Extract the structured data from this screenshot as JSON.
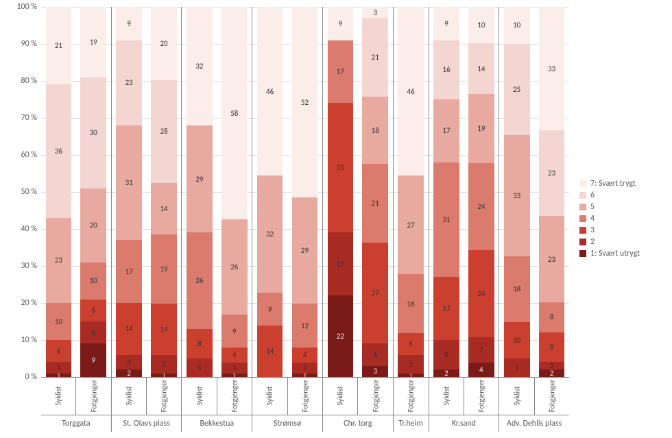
{
  "chart": {
    "type": "stacked-bar-percent",
    "background_color": "#ffffff",
    "grid_color": "#d9d9d9",
    "axis_color": "#888888",
    "text_color": "#595959",
    "label_fontsize": 12,
    "datalabel_fontsize": 11,
    "ylim": [
      0,
      100
    ],
    "ytick_step": 10,
    "yticks": [
      "0 %",
      "10 %",
      "20 %",
      "30 %",
      "40 %",
      "50 %",
      "60 %",
      "70 %",
      "80 %",
      "90 %",
      "100 %"
    ],
    "series": [
      {
        "key": "1",
        "label": "1: Svært utrygt",
        "color": "#7a1b17"
      },
      {
        "key": "2",
        "label": "2",
        "color": "#a82b24"
      },
      {
        "key": "3",
        "label": "3",
        "color": "#cb3f2e"
      },
      {
        "key": "4",
        "label": "4",
        "color": "#da7b6e"
      },
      {
        "key": "5",
        "label": "5",
        "color": "#e8a9a0"
      },
      {
        "key": "6",
        "label": "6",
        "color": "#f3d6d1"
      },
      {
        "key": "7",
        "label": "7: Svært trygt",
        "color": "#fbede9"
      }
    ],
    "legend_order": [
      "7",
      "6",
      "5",
      "4",
      "3",
      "2",
      "1"
    ],
    "groups": [
      {
        "label": "Torggata",
        "bars": [
          {
            "cat": "Syklist",
            "values": {
              "1": 1,
              "2": 3,
              "3": 6,
              "4": 10,
              "5": 23,
              "6": 36,
              "7": 21
            }
          },
          {
            "cat": "Fotgjenger",
            "values": {
              "1": 9,
              "2": 6,
              "3": 6,
              "4": 10,
              "5": 20,
              "6": 30,
              "7": 19
            }
          }
        ]
      },
      {
        "label": "St. Olavs plass",
        "bars": [
          {
            "cat": "Syklist",
            "values": {
              "1": 2,
              "2": 4,
              "3": 14,
              "4": 17,
              "5": 31,
              "6": 23,
              "7": 9
            }
          },
          {
            "cat": "Fotgjenger",
            "values": {
              "1": 1,
              "2": 5,
              "3": 14,
              "4": 19,
              "5": 14,
              "6": 28,
              "7": 20
            }
          }
        ]
      },
      {
        "label": "Bekkestua",
        "bars": [
          {
            "cat": "Syklist",
            "values": {
              "1": 0,
              "2": 5,
              "3": 8,
              "4": 26,
              "5": 29,
              "6": 0,
              "7": 32
            }
          },
          {
            "cat": "Fotgjenger",
            "values": {
              "1": 1,
              "2": 3,
              "3": 4,
              "4": 9,
              "5": 26,
              "6": 0,
              "7": 58
            }
          }
        ]
      },
      {
        "label": "Strømsø",
        "bars": [
          {
            "cat": "Syklist",
            "values": {
              "1": 0,
              "2": 0,
              "3": 14,
              "4": 9,
              "5": 32,
              "6": 0,
              "7": 46
            }
          },
          {
            "cat": "Fotgjenger",
            "values": {
              "1": 1,
              "2": 3,
              "3": 4,
              "4": 12,
              "5": 29,
              "6": 0,
              "7": 52
            }
          }
        ]
      },
      {
        "label": "Chr. torg",
        "bars": [
          {
            "cat": "Syklist",
            "values": {
              "1": 22,
              "2": 17,
              "3": 35,
              "4": 17,
              "5": 0,
              "6": 0,
              "7": 9
            }
          },
          {
            "cat": "Fotgjenger",
            "values": {
              "1": 3,
              "2": 6,
              "3": 27,
              "4": 21,
              "5": 18,
              "6": 21,
              "7": 3
            }
          }
        ]
      },
      {
        "label": "Tr.heim",
        "bars": [
          {
            "cat": "Fotgjenger",
            "values": {
              "1": 1,
              "2": 5,
              "3": 6,
              "4": 16,
              "5": 27,
              "6": 0,
              "7": 46
            }
          }
        ]
      },
      {
        "label": "Kr.sand",
        "bars": [
          {
            "cat": "Syklist",
            "values": {
              "1": 2,
              "2": 8,
              "3": 17,
              "4": 31,
              "5": 17,
              "6": 16,
              "7": 9
            }
          },
          {
            "cat": "Fotgjenger",
            "values": {
              "1": 4,
              "2": 7,
              "3": 24,
              "4": 24,
              "5": 19,
              "6": 14,
              "7": 10
            }
          }
        ]
      },
      {
        "label": "Adv. Dehlis plass",
        "bars": [
          {
            "cat": "Syklist",
            "values": {
              "1": 0,
              "2": 5,
              "3": 10,
              "4": 18,
              "5": 33,
              "6": 25,
              "7": 10
            }
          },
          {
            "cat": "Fotgjenger",
            "values": {
              "1": 2,
              "2": 2,
              "3": 8,
              "4": 8,
              "5": 23,
              "6": 23,
              "7": 33
            }
          }
        ]
      }
    ]
  }
}
